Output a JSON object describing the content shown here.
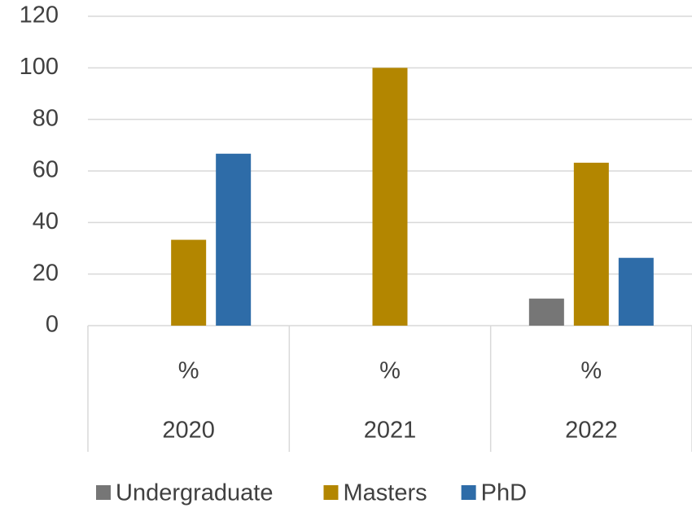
{
  "chart_data": {
    "type": "bar",
    "categories": [
      "2020",
      "2021",
      "2022"
    ],
    "inner_categories": [
      "%",
      "%",
      "%"
    ],
    "series": [
      {
        "name": "Undergraduate",
        "color": "#767676",
        "values": [
          0,
          0,
          10.5
        ]
      },
      {
        "name": "Masters",
        "color": "#b38600",
        "values": [
          33.3,
          100,
          63.2
        ]
      },
      {
        "name": "PhD",
        "color": "#2e6ca8",
        "values": [
          66.7,
          0,
          26.3
        ]
      }
    ],
    "ylim": [
      0,
      120
    ],
    "yticks": [
      0,
      20,
      40,
      60,
      80,
      100,
      120
    ],
    "grid": true,
    "legend": "bottom"
  }
}
